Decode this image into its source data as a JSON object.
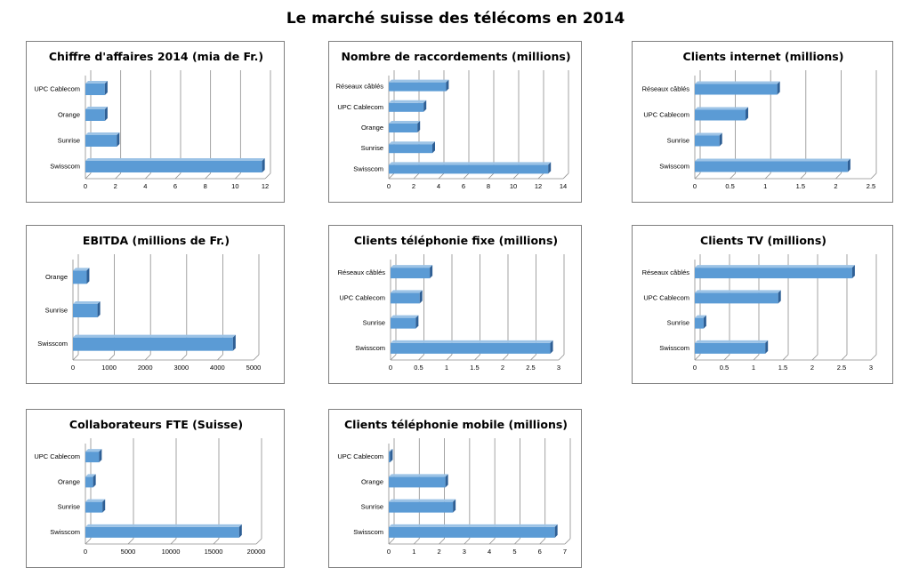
{
  "title": "Le marché suisse des télécoms en 2014",
  "colors": {
    "bar_front": "#5b9bd5",
    "bar_top": "#9cc3e6",
    "bar_side": "#2e5f95",
    "grid": "#8c8c8c"
  },
  "chart_data": [
    {
      "type": "bar",
      "orientation": "horizontal",
      "title": "Chiffre d'affaires 2014 (mia de Fr.)",
      "categories": [
        "UPC Cablecom",
        "Orange",
        "Sunrise",
        "Swisscom"
      ],
      "values": [
        1.3,
        1.3,
        2.1,
        11.8
      ],
      "xlim": [
        0,
        12
      ],
      "ticks": [
        0,
        2,
        4,
        6,
        8,
        10,
        12
      ]
    },
    {
      "type": "bar",
      "orientation": "horizontal",
      "title": "Nombre de raccordements (millions)",
      "categories": [
        "Réseaux câblés",
        "UPC Cablecom",
        "Orange",
        "Sunrise",
        "Swisscom"
      ],
      "values": [
        4.6,
        2.8,
        2.3,
        3.5,
        12.8
      ],
      "xlim": [
        0,
        14
      ],
      "ticks": [
        0,
        2,
        4,
        6,
        8,
        10,
        12,
        14
      ]
    },
    {
      "type": "bar",
      "orientation": "horizontal",
      "title": "Clients internet (millions)",
      "categories": [
        "Réseaux câblés",
        "UPC Cablecom",
        "Sunrise",
        "Swisscom"
      ],
      "values": [
        1.17,
        0.72,
        0.35,
        2.17
      ],
      "xlim": [
        0,
        2.5
      ],
      "ticks": [
        0,
        0.5,
        1,
        1.5,
        2,
        2.5
      ]
    },
    {
      "type": "bar",
      "orientation": "horizontal",
      "title": "EBITDA (millions de Fr.)",
      "categories": [
        "Orange",
        "Sunrise",
        "Swisscom"
      ],
      "values": [
        380,
        680,
        4430
      ],
      "xlim": [
        0,
        5000
      ],
      "ticks": [
        0,
        1000,
        2000,
        3000,
        4000,
        5000
      ]
    },
    {
      "type": "bar",
      "orientation": "horizontal",
      "title": "Clients téléphonie fixe (millions)",
      "categories": [
        "Réseaux câblés",
        "UPC Cablecom",
        "Sunrise",
        "Swisscom"
      ],
      "values": [
        0.7,
        0.52,
        0.45,
        2.85
      ],
      "xlim": [
        0,
        3
      ],
      "ticks": [
        0,
        0.5,
        1,
        1.5,
        2,
        2.5,
        3
      ]
    },
    {
      "type": "bar",
      "orientation": "horizontal",
      "title": "Clients TV (millions)",
      "categories": [
        "Réseaux câblés",
        "UPC Cablecom",
        "Sunrise",
        "Swisscom"
      ],
      "values": [
        2.68,
        1.42,
        0.15,
        1.2
      ],
      "xlim": [
        0,
        3
      ],
      "ticks": [
        0,
        0.5,
        1,
        1.5,
        2,
        2.5,
        3
      ]
    },
    {
      "type": "bar",
      "orientation": "horizontal",
      "title": "Collaborateurs FTE (Suisse)",
      "categories": [
        "UPC Cablecom",
        "Orange",
        "Sunrise",
        "Swisscom"
      ],
      "values": [
        1600,
        900,
        2000,
        18000
      ],
      "xlim": [
        0,
        20000
      ],
      "ticks": [
        0,
        5000,
        10000,
        15000,
        20000
      ]
    },
    {
      "type": "bar",
      "orientation": "horizontal",
      "title": "Clients téléphonie mobile (millions)",
      "categories": [
        "UPC Cablecom",
        "Orange",
        "Sunrise",
        "Swisscom"
      ],
      "values": [
        0.05,
        2.25,
        2.55,
        6.6
      ],
      "xlim": [
        0,
        7
      ],
      "ticks": [
        0,
        1,
        2,
        3,
        4,
        5,
        6,
        7
      ]
    }
  ]
}
